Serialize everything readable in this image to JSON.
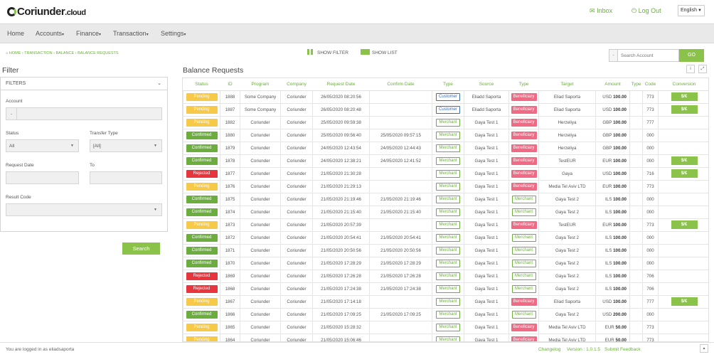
{
  "brand": {
    "name": "Coriunder",
    "suffix": ".cloud"
  },
  "header": {
    "inbox_label": "Inbox",
    "logout_label": "Log Out",
    "language": "English"
  },
  "nav": {
    "items": [
      "Home",
      "Accounts",
      "Finance",
      "Transaction",
      "Settings"
    ]
  },
  "breadcrumb": [
    "HOME",
    "TRANSACTION",
    "BALANCE",
    "BALANCE REQUESTS"
  ],
  "toolbar": {
    "show_filter": "SHOW FILTER",
    "show_list": "SHOW LIST",
    "search_placeholder": "Search Account",
    "go_label": "GO"
  },
  "filter": {
    "title": "Filter",
    "panel_title": "FILTERS",
    "account_label": "Account",
    "account_prefix": "-",
    "status_label": "Status",
    "status_value": "All",
    "transfer_type_label": "Transfer Type",
    "transfer_type_value": "[All]",
    "request_date_label": "Request Date",
    "to_label": "To",
    "result_code_label": "Result Code",
    "search_button": "Search"
  },
  "main": {
    "title": "Balance Requests"
  },
  "table": {
    "headers": [
      "Status",
      "ID",
      "Program",
      "Company",
      "Request Date",
      "Confirm Date",
      "Type",
      "Source",
      "Type",
      "Target",
      "Amount",
      "Type",
      "Code",
      "Conversion"
    ],
    "rows": [
      {
        "status": "Pending",
        "id": "1888",
        "program": "Some Company",
        "company": "Coriunder",
        "request_date": "26/05/2020 08:20:56",
        "confirm_date": "",
        "type1": "Customer",
        "source": "Eliadd Saporta",
        "type2": "Beneficiary",
        "target": "Eliad Saporta",
        "currency": "USD",
        "amount": "100.00",
        "code": "773",
        "conversion": "$/€"
      },
      {
        "status": "Pending",
        "id": "1887",
        "program": "Some Company",
        "company": "Coriunder",
        "request_date": "26/05/2020 08:20:48",
        "confirm_date": "",
        "type1": "Customer",
        "source": "Eliadd Saporta",
        "type2": "Beneficiary",
        "target": "Eliad Saporta",
        "currency": "USD",
        "amount": "100.00",
        "code": "773",
        "conversion": "$/€"
      },
      {
        "status": "Pending",
        "id": "1882",
        "program": "Coriunder",
        "company": "Coriunder",
        "request_date": "25/05/2020 09:59:38",
        "confirm_date": "",
        "type1": "Merchant",
        "source": "Gaya Test 1",
        "type2": "Beneficiary",
        "target": "Herzeliya",
        "currency": "GBP",
        "amount": "100.00",
        "code": "777",
        "conversion": ""
      },
      {
        "status": "Confirmed",
        "id": "1880",
        "program": "Coriunder",
        "company": "Coriunder",
        "request_date": "25/05/2020 09:56:40",
        "confirm_date": "25/05/2020 09:57:15",
        "type1": "Merchant",
        "source": "Gaya Test 1",
        "type2": "Beneficiary",
        "target": "Herzeliya",
        "currency": "GBP",
        "amount": "100.00",
        "code": "000",
        "conversion": ""
      },
      {
        "status": "Confirmed",
        "id": "1879",
        "program": "Coriunder",
        "company": "Coriunder",
        "request_date": "24/05/2020 12:43:54",
        "confirm_date": "24/05/2020 12:44:43",
        "type1": "Merchant",
        "source": "Gaya Test 1",
        "type2": "Beneficiary",
        "target": "Herzeliya",
        "currency": "GBP",
        "amount": "100.00",
        "code": "000",
        "conversion": ""
      },
      {
        "status": "Confirmed",
        "id": "1878",
        "program": "Coriunder",
        "company": "Coriunder",
        "request_date": "24/05/2020 12:38:21",
        "confirm_date": "24/05/2020 12:41:52",
        "type1": "Merchant",
        "source": "Gaya Test 1",
        "type2": "Beneficiary",
        "target": "TestEUR",
        "currency": "EUR",
        "amount": "100.00",
        "code": "000",
        "conversion": "$/€"
      },
      {
        "status": "Rejected",
        "id": "1877",
        "program": "Coriunder",
        "company": "Coriunder",
        "request_date": "21/05/2020 21:30:28",
        "confirm_date": "",
        "type1": "Merchant",
        "source": "Gaya Test 1",
        "type2": "Beneficiary",
        "target": "Gaya",
        "currency": "USD",
        "amount": "100.00",
        "code": "716",
        "conversion": "$/€"
      },
      {
        "status": "Pending",
        "id": "1876",
        "program": "Coriunder",
        "company": "Coriunder",
        "request_date": "21/05/2020 21:29:13",
        "confirm_date": "",
        "type1": "Merchant",
        "source": "Gaya Test 1",
        "type2": "Beneficiary",
        "target": "Media Tel Aviv LTD",
        "currency": "EUR",
        "amount": "100.00",
        "code": "773",
        "conversion": ""
      },
      {
        "status": "Confirmed",
        "id": "1875",
        "program": "Coriunder",
        "company": "Coriunder",
        "request_date": "21/05/2020 21:19:46",
        "confirm_date": "21/05/2020 21:19:46",
        "type1": "Merchant",
        "source": "Gaya Test 1",
        "type2": "Merchant",
        "target": "Gaya Test 2",
        "currency": "ILS",
        "amount": "100.00",
        "code": "000",
        "conversion": ""
      },
      {
        "status": "Confirmed",
        "id": "1874",
        "program": "Coriunder",
        "company": "Coriunder",
        "request_date": "21/05/2020 21:15:40",
        "confirm_date": "21/05/2020 21:15:40",
        "type1": "Merchant",
        "source": "Gaya Test 1",
        "type2": "Merchant",
        "target": "Gaya Test 2",
        "currency": "ILS",
        "amount": "100.00",
        "code": "000",
        "conversion": ""
      },
      {
        "status": "Pending",
        "id": "1873",
        "program": "Coriunder",
        "company": "Coriunder",
        "request_date": "21/05/2020 20:57:39",
        "confirm_date": "",
        "type1": "Merchant",
        "source": "Gaya Test 1",
        "type2": "Beneficiary",
        "target": "TestEUR",
        "currency": "EUR",
        "amount": "100.00",
        "code": "773",
        "conversion": "$/€"
      },
      {
        "status": "Confirmed",
        "id": "1872",
        "program": "Coriunder",
        "company": "Coriunder",
        "request_date": "21/05/2020 20:54:41",
        "confirm_date": "21/05/2020 20:54:41",
        "type1": "Merchant",
        "source": "Gaya Test 1",
        "type2": "Merchant",
        "target": "Gaya Test 2",
        "currency": "ILS",
        "amount": "100.00",
        "code": "000",
        "conversion": ""
      },
      {
        "status": "Confirmed",
        "id": "1871",
        "program": "Coriunder",
        "company": "Coriunder",
        "request_date": "21/05/2020 20:50:56",
        "confirm_date": "21/05/2020 20:50:56",
        "type1": "Merchant",
        "source": "Gaya Test 1",
        "type2": "Merchant",
        "target": "Gaya Test 2",
        "currency": "ILS",
        "amount": "100.00",
        "code": "000",
        "conversion": ""
      },
      {
        "status": "Confirmed",
        "id": "1870",
        "program": "Coriunder",
        "company": "Coriunder",
        "request_date": "21/05/2020 17:28:29",
        "confirm_date": "21/05/2020 17:28:29",
        "type1": "Merchant",
        "source": "Gaya Test 1",
        "type2": "Merchant",
        "target": "Gaya Test 2",
        "currency": "ILS",
        "amount": "100.00",
        "code": "000",
        "conversion": ""
      },
      {
        "status": "Rejected",
        "id": "1869",
        "program": "Coriunder",
        "company": "Coriunder",
        "request_date": "21/05/2020 17:26:28",
        "confirm_date": "21/05/2020 17:26:28",
        "type1": "Merchant",
        "source": "Gaya Test 1",
        "type2": "Merchant",
        "target": "Gaya Test 2",
        "currency": "ILS",
        "amount": "100.00",
        "code": "706",
        "conversion": ""
      },
      {
        "status": "Rejected",
        "id": "1868",
        "program": "Coriunder",
        "company": "Coriunder",
        "request_date": "21/05/2020 17:24:38",
        "confirm_date": "21/05/2020 17:24:38",
        "type1": "Merchant",
        "source": "Gaya Test 1",
        "type2": "Merchant",
        "target": "Gaya Test 2",
        "currency": "ILS",
        "amount": "100.00",
        "code": "706",
        "conversion": ""
      },
      {
        "status": "Pending",
        "id": "1867",
        "program": "Coriunder",
        "company": "Coriunder",
        "request_date": "21/05/2020 17:14:18",
        "confirm_date": "",
        "type1": "Merchant",
        "source": "Gaya Test 1",
        "type2": "Beneficiary",
        "target": "Eliad Saporta",
        "currency": "USD",
        "amount": "100.00",
        "code": "777",
        "conversion": "$/€"
      },
      {
        "status": "Confirmed",
        "id": "1866",
        "program": "Coriunder",
        "company": "Coriunder",
        "request_date": "21/05/2020 17:09:25",
        "confirm_date": "21/05/2020 17:09:25",
        "type1": "Merchant",
        "source": "Gaya Test 1",
        "type2": "Merchant",
        "target": "Gaya Test 2",
        "currency": "USD",
        "amount": "200.00",
        "code": "000",
        "conversion": ""
      },
      {
        "status": "Pending",
        "id": "1865",
        "program": "Coriunder",
        "company": "Coriunder",
        "request_date": "21/05/2020 15:28:32",
        "confirm_date": "",
        "type1": "Merchant",
        "source": "Gaya Test 1",
        "type2": "Beneficiary",
        "target": "Media Tel Aviv LTD",
        "currency": "EUR",
        "amount": "50.00",
        "code": "773",
        "conversion": ""
      },
      {
        "status": "Pending",
        "id": "1864",
        "program": "Coriunder",
        "company": "Coriunder",
        "request_date": "21/05/2020 15:06:46",
        "confirm_date": "",
        "type1": "Merchant",
        "source": "Gaya Test 1",
        "type2": "Beneficiary",
        "target": "Media Tel Aviv LTD",
        "currency": "EUR",
        "amount": "50.00",
        "code": "773",
        "conversion": ""
      }
    ]
  },
  "footer": {
    "logged_in_text": "You are logged in as eliadsaporta",
    "changelog": "Changelog",
    "version": "Version : 1.0.1.5",
    "feedback": "Submit Feedback"
  },
  "colors": {
    "accent": "#8bc34a",
    "pending": "#f7c948",
    "confirmed": "#6cae3e",
    "rejected": "#e8343d",
    "beneficiary": "#f06a85",
    "customer": "#3a6fb6"
  },
  "icons": {
    "inbox": "envelope-icon",
    "logout": "power-icon",
    "info": "info-icon",
    "expand": "expand-icon",
    "scroll_top": "chevron-up-icon"
  }
}
